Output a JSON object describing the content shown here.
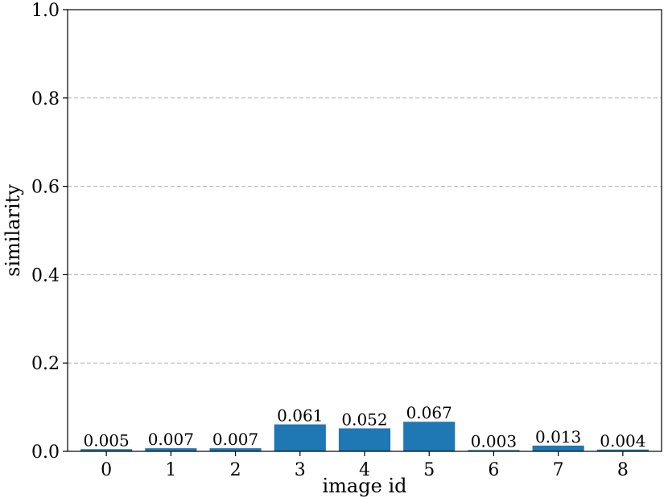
{
  "chart_data": {
    "type": "bar",
    "title": "",
    "xlabel": "image id",
    "ylabel": "similarity",
    "categories": [
      "0",
      "1",
      "2",
      "3",
      "4",
      "5",
      "6",
      "7",
      "8"
    ],
    "values": [
      0.005,
      0.007,
      0.007,
      0.061,
      0.052,
      0.067,
      0.003,
      0.013,
      0.004
    ],
    "data_labels": [
      "0.005",
      "0.007",
      "0.007",
      "0.061",
      "0.052",
      "0.067",
      "0.003",
      "0.013",
      "0.004"
    ],
    "ylim": [
      0,
      1.0
    ],
    "yticks": [
      0.0,
      0.2,
      0.4,
      0.6,
      0.8,
      1.0
    ],
    "ytick_labels": [
      "0.0",
      "0.2",
      "0.4",
      "0.6",
      "0.8",
      "1.0"
    ],
    "grid": "horizontal-dashed",
    "legend": "none",
    "bar_color": "#1f77b4",
    "grid_color": "#b0b0b0"
  }
}
